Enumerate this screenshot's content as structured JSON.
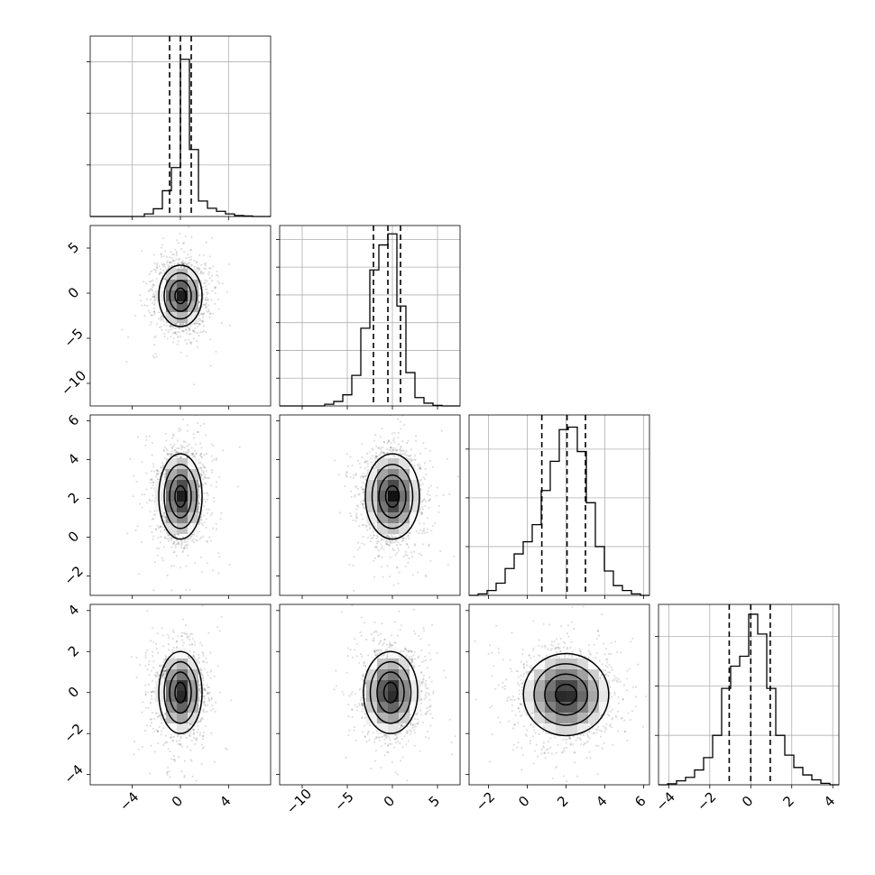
{
  "chart_data": {
    "type": "corner",
    "title": "",
    "parameters": [
      {
        "range": [
          -7.5,
          7.5
        ],
        "ticks": [
          -4,
          0,
          4
        ],
        "quantiles": [
          -0.9,
          0.0,
          0.9
        ],
        "hist_scale": 3.5
      },
      {
        "range": [
          -12.5,
          7.5
        ],
        "ticks": [
          -10,
          -5,
          0,
          5
        ],
        "quantiles": [
          -2.1,
          -0.5,
          0.9
        ],
        "hist_scale": 3.25
      },
      {
        "range": [
          -3.0,
          6.3
        ],
        "ticks": [
          -2,
          0,
          2,
          4,
          6
        ],
        "quantiles": [
          0.75,
          2.05,
          3.0
        ],
        "hist_scale": 3.7
      },
      {
        "range": [
          -4.5,
          4.3
        ],
        "ticks": [
          -4,
          -2,
          0,
          2,
          4
        ],
        "quantiles": [
          -1.05,
          0.0,
          0.95
        ],
        "hist_scale": 3.65
      }
    ],
    "histograms": [
      {
        "bins": [
          -7.5,
          -6.75,
          -6.0,
          -5.25,
          -4.5,
          -3.75,
          -3.0,
          -2.25,
          -1.5,
          -0.75,
          0.0,
          0.75,
          1.5,
          2.25,
          3.0,
          3.75,
          4.5,
          5.25,
          6.0,
          6.75,
          7.5
        ],
        "counts": [
          0.0,
          0.0,
          0.0,
          0.0,
          0.0,
          0.0,
          0.05,
          0.15,
          0.5,
          0.95,
          3.05,
          1.3,
          0.3,
          0.16,
          0.1,
          0.05,
          0.02,
          0.01,
          0.0,
          0.0
        ],
        "yticks": [
          1,
          2,
          3
        ]
      },
      {
        "bins": [
          -12.5,
          -11.5,
          -10.5,
          -9.5,
          -8.5,
          -7.5,
          -6.5,
          -5.5,
          -4.5,
          -3.5,
          -2.5,
          -1.5,
          -0.5,
          0.5,
          1.5,
          2.5,
          3.5,
          4.5,
          5.5,
          6.5,
          7.5
        ],
        "counts": [
          0.0,
          0.0,
          0.0,
          0.0,
          0.0,
          0.03,
          0.08,
          0.2,
          0.55,
          1.4,
          2.45,
          2.9,
          3.1,
          1.8,
          0.6,
          0.15,
          0.05,
          0.01,
          0.0,
          0.0
        ],
        "yticks": [
          0.5,
          1,
          1.5,
          2,
          2.5,
          3
        ]
      },
      {
        "bins": [
          -3.0,
          -2.535,
          -2.07,
          -1.605,
          -1.14,
          -0.675,
          -0.21,
          0.255,
          0.72,
          1.185,
          1.65,
          2.115,
          2.58,
          3.045,
          3.51,
          3.975,
          4.44,
          4.905,
          5.37,
          5.835,
          6.3
        ],
        "counts": [
          0.0,
          0.03,
          0.1,
          0.25,
          0.55,
          0.85,
          1.1,
          1.45,
          2.15,
          2.75,
          3.4,
          3.45,
          2.95,
          1.9,
          1.0,
          0.5,
          0.2,
          0.1,
          0.03,
          0.0
        ],
        "yticks": [
          1,
          2,
          3
        ]
      },
      {
        "bins": [
          -4.5,
          -4.06,
          -3.62,
          -3.18,
          -2.74,
          -2.3,
          -1.86,
          -1.42,
          -0.98,
          -0.54,
          -0.1,
          0.34,
          0.78,
          1.22,
          1.66,
          2.1,
          2.54,
          2.98,
          3.42,
          3.86,
          4.3
        ],
        "counts": [
          0.0,
          0.02,
          0.08,
          0.15,
          0.3,
          0.55,
          1.0,
          1.95,
          2.4,
          2.6,
          3.45,
          3.05,
          1.95,
          1.0,
          0.6,
          0.35,
          0.2,
          0.1,
          0.03,
          0.0
        ],
        "yticks": [
          1,
          2,
          3
        ]
      }
    ],
    "pairs": [
      {
        "row": 1,
        "col": 0,
        "mean": [
          0.0,
          -0.3
        ],
        "std": [
          0.9,
          1.7
        ],
        "seed": 11
      },
      {
        "row": 2,
        "col": 0,
        "mean": [
          0.0,
          2.1
        ],
        "std": [
          0.9,
          1.1
        ],
        "seed": 12
      },
      {
        "row": 2,
        "col": 1,
        "mean": [
          0.0,
          2.1
        ],
        "std": [
          1.5,
          1.1
        ],
        "seed": 13
      },
      {
        "row": 3,
        "col": 0,
        "mean": [
          0.0,
          0.0
        ],
        "std": [
          0.9,
          1.0
        ],
        "seed": 14
      },
      {
        "row": 3,
        "col": 1,
        "mean": [
          -0.2,
          0.0
        ],
        "std": [
          1.5,
          1.0
        ],
        "seed": 15
      },
      {
        "row": 3,
        "col": 2,
        "mean": [
          2.0,
          -0.1
        ],
        "std": [
          1.1,
          1.0
        ],
        "seed": 16
      }
    ],
    "contour_levels_sigma": [
      0.5,
      1.0,
      1.5,
      2.0
    ],
    "grid": true
  }
}
